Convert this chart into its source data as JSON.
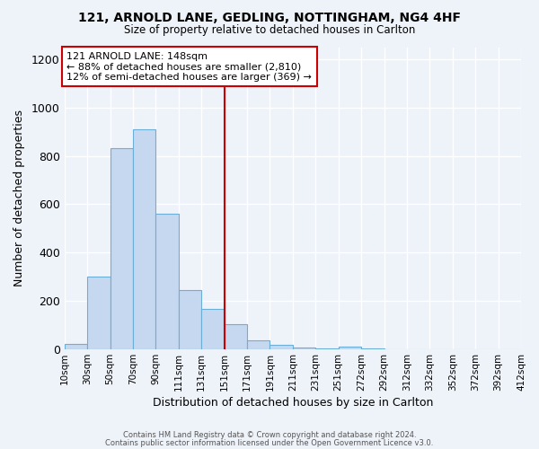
{
  "title1": "121, ARNOLD LANE, GEDLING, NOTTINGHAM, NG4 4HF",
  "title2": "Size of property relative to detached houses in Carlton",
  "xlabel": "Distribution of detached houses by size in Carlton",
  "ylabel": "Number of detached properties",
  "footer1": "Contains HM Land Registry data © Crown copyright and database right 2024.",
  "footer2": "Contains public sector information licensed under the Open Government Licence v3.0.",
  "bin_labels": [
    "10sqm",
    "30sqm",
    "50sqm",
    "70sqm",
    "90sqm",
    "111sqm",
    "131sqm",
    "151sqm",
    "171sqm",
    "191sqm",
    "211sqm",
    "231sqm",
    "251sqm",
    "272sqm",
    "292sqm",
    "312sqm",
    "332sqm",
    "352sqm",
    "372sqm",
    "392sqm",
    "412sqm"
  ],
  "values": [
    20,
    300,
    830,
    910,
    560,
    245,
    165,
    105,
    38,
    18,
    8,
    3,
    12,
    3,
    0,
    0,
    0,
    0,
    0,
    0
  ],
  "bar_color": "#c5d8f0",
  "bar_edge_color": "#6baed6",
  "vline_index": 7,
  "vline_color": "#cc0000",
  "annotation_title": "121 ARNOLD LANE: 148sqm",
  "annotation_line1": "← 88% of detached houses are smaller (2,810)",
  "annotation_line2": "12% of semi-detached houses are larger (369) →",
  "annotation_box_color": "#ffffff",
  "annotation_box_edge": "#cc0000",
  "ylim": [
    0,
    1250
  ],
  "yticks": [
    0,
    200,
    400,
    600,
    800,
    1000,
    1200
  ],
  "background_color": "#eef2f9",
  "grid_color": "#ffffff"
}
